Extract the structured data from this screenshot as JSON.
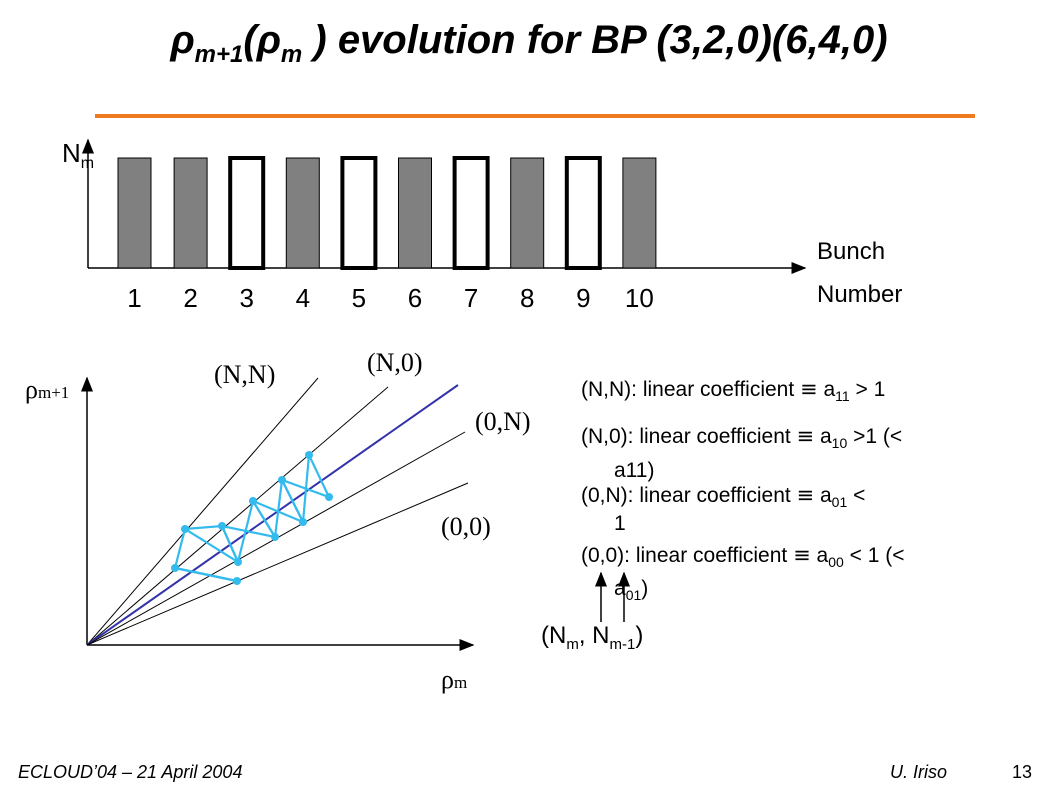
{
  "slide": {
    "title": {
      "rho1": "ρ",
      "sub1": "m+1",
      "paren_open": "(",
      "rho2": "ρ",
      "sub2": "m",
      "rest": " ) evolution for BP (3,2,0)(6,4,0)"
    },
    "accent_color": "#f07a20"
  },
  "bunch_diagram": {
    "y_label": {
      "main": "N",
      "sub": "m"
    },
    "x_label_line1": "Bunch",
    "x_label_line2": "Number",
    "bunch_numbers": [
      "1",
      "2",
      "3",
      "4",
      "5",
      "6",
      "7",
      "8",
      "9",
      "10"
    ],
    "bunch_states": [
      "filled",
      "filled",
      "empty",
      "filled",
      "empty",
      "filled",
      "empty",
      "filled",
      "empty",
      "filled"
    ],
    "filled_color": "#808080"
  },
  "map_diagram": {
    "y_label": {
      "main": "ρ",
      "sub": "m+1"
    },
    "x_label": {
      "main": "ρ",
      "sub": "m"
    },
    "line_labels": {
      "nn": "(N,N)",
      "n0": "(N,0)",
      "0n": "(0,N)",
      "00": "(0,0)"
    },
    "line_color": "#000000",
    "diagonal_color": "#3333aa",
    "path_color": "#33bbee"
  },
  "legend": {
    "l1": {
      "pre": "(N,N): linear coefficient ",
      "equiv": "≡",
      "a": " a",
      "sub": "11",
      "post": " > 1"
    },
    "l2": {
      "pre": "(N,0): linear coefficient ",
      "equiv": "≡",
      "a": " a",
      "sub": "10",
      "post": " >1 (<",
      "cont": "a11)"
    },
    "l3": {
      "pre": "(0,N): linear coefficient ",
      "equiv": "≡",
      "a": " a",
      "sub": "01",
      "post": " <",
      "cont": "1"
    },
    "l4": {
      "pre": "(0,0): linear coefficient ",
      "equiv": "≡",
      "a": " a",
      "sub": "00",
      "post": " < 1 (<",
      "cont_a": "a",
      "cont_sub": "01",
      "cont_post": ")"
    },
    "state_label": {
      "open": "(N",
      "sub1": "m",
      "mid": ", N",
      "sub2": "m-1",
      "close": ")"
    }
  },
  "footer": {
    "left": "ECLOUD’04 – 21 April 2004",
    "author": "U. Iriso",
    "page": "13"
  }
}
